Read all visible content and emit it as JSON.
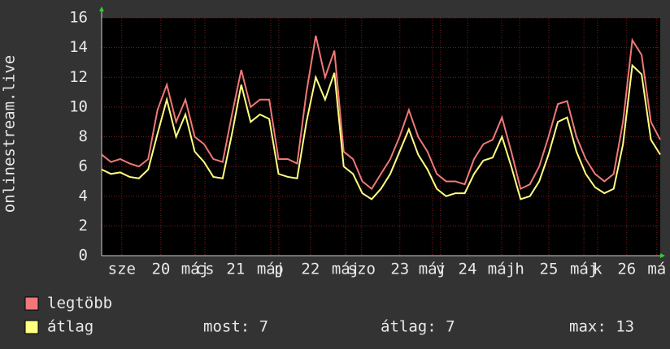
{
  "chart_data": {
    "type": "line",
    "y_label": "onlinestream.live",
    "x": [
      0,
      3,
      6,
      9,
      12,
      15,
      18,
      21,
      24,
      27,
      30,
      33,
      36,
      39,
      42,
      45,
      48,
      51,
      54,
      57,
      60,
      63,
      66,
      69,
      72,
      75,
      78,
      81,
      84,
      87,
      90,
      93,
      96,
      99,
      102,
      105,
      108,
      111,
      114,
      117,
      120,
      123,
      126,
      129,
      132,
      135,
      138,
      141,
      144,
      147,
      150,
      153,
      156,
      159,
      162,
      165,
      168,
      171,
      174,
      177,
      180
    ],
    "series": [
      {
        "name": "legtöbb",
        "color": "#f07878",
        "values": [
          6.8,
          6.3,
          6.5,
          6.2,
          6,
          6.5,
          9.8,
          11.5,
          9,
          10.5,
          8,
          7.5,
          6.5,
          6.3,
          9.5,
          12.5,
          10,
          10.5,
          10.5,
          6.5,
          6.5,
          6.2,
          11,
          14.8,
          12,
          13.8,
          7,
          6.5,
          5,
          4.5,
          5.5,
          6.5,
          8,
          9.8,
          8,
          7,
          5.5,
          5,
          5,
          4.8,
          6.5,
          7.5,
          7.8,
          9.3,
          7,
          4.5,
          4.8,
          6,
          8,
          10.2,
          10.4,
          8,
          6.5,
          5.5,
          5,
          5.5,
          9,
          14.5,
          13.5,
          9,
          7.8
        ]
      },
      {
        "name": "átlag",
        "color": "#ffff80",
        "values": [
          5.8,
          5.5,
          5.6,
          5.3,
          5.2,
          5.8,
          8.2,
          10.5,
          8,
          9.5,
          7,
          6.3,
          5.3,
          5.2,
          8.2,
          11.5,
          9,
          9.5,
          9.2,
          5.5,
          5.3,
          5.2,
          9,
          12,
          10.5,
          12.3,
          6,
          5.5,
          4.2,
          3.8,
          4.5,
          5.5,
          7,
          8.5,
          6.8,
          5.8,
          4.5,
          4,
          4.2,
          4.2,
          5.5,
          6.4,
          6.6,
          8,
          6,
          3.8,
          4,
          5,
          6.8,
          9,
          9.3,
          7,
          5.5,
          4.6,
          4.2,
          4.5,
          7.5,
          12.8,
          12.2,
          7.8,
          6.8
        ]
      }
    ],
    "xlim": [
      0,
      180
    ],
    "xticks": [
      {
        "value": 6.5,
        "label": "sze"
      },
      {
        "value": 19.1,
        "label": "20"
      },
      {
        "value": 30.1,
        "label": "máj"
      },
      {
        "value": 33.3,
        "label": "cs"
      },
      {
        "value": 43.2,
        "label": "21"
      },
      {
        "value": 54.5,
        "label": "máj"
      },
      {
        "value": 57.1,
        "label": "p"
      },
      {
        "value": 67.3,
        "label": "22"
      },
      {
        "value": 78.6,
        "label": "máj"
      },
      {
        "value": 83.8,
        "label": "szo"
      },
      {
        "value": 96.1,
        "label": "23"
      },
      {
        "value": 106.6,
        "label": "máj"
      },
      {
        "value": 109.2,
        "label": "v"
      },
      {
        "value": 117.9,
        "label": "24"
      },
      {
        "value": 128.9,
        "label": "máj"
      },
      {
        "value": 134.7,
        "label": "h"
      },
      {
        "value": 144.1,
        "label": "25"
      },
      {
        "value": 155.4,
        "label": "máj"
      },
      {
        "value": 159.8,
        "label": "k"
      },
      {
        "value": 169.2,
        "label": "26"
      },
      {
        "value": 178.9,
        "label": "má"
      }
    ],
    "ylim": [
      0,
      16
    ],
    "yticks": [
      0,
      2,
      4,
      6,
      8,
      10,
      12,
      14,
      16
    ],
    "grid": true,
    "stats": [
      "most: 7",
      "átlag: 7",
      "max: 13"
    ]
  }
}
